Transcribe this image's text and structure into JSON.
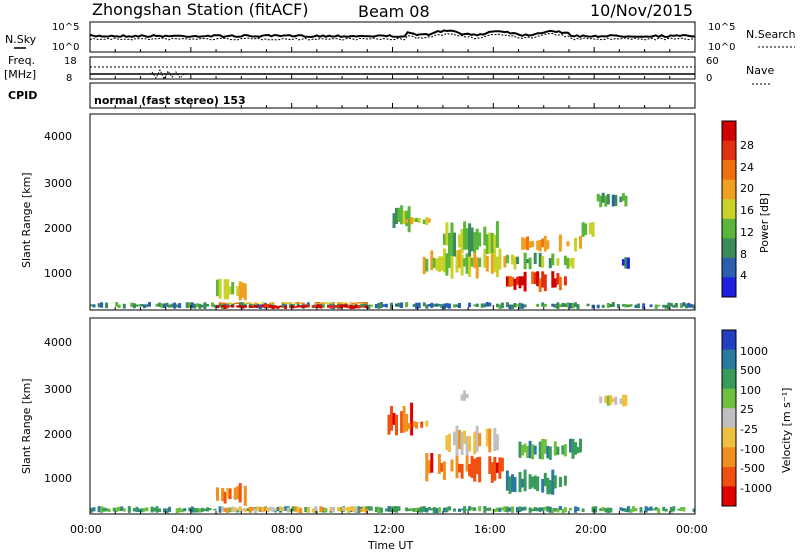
{
  "header": {
    "station": "Zhongshan Station (fitACF)",
    "beam": "Beam 08",
    "date": "10/Nov/2015"
  },
  "top_panels": {
    "nsky_label": "N.Sky",
    "nsky_ticks": [
      "10^5",
      "10^0"
    ],
    "nsearch_label": "N.Search",
    "nsearch_ticks": [
      "10^5",
      "10^0"
    ],
    "freq_label": "Freq.",
    "freq_unit": "[MHz]",
    "freq_ticks": [
      "18",
      "8"
    ],
    "nave_label": "Nave",
    "nave_ticks": [
      "60",
      "0"
    ],
    "cpid_label": "CPID",
    "cpid_text": "normal (fast stereo) 153"
  },
  "x_axis": {
    "label": "Time UT",
    "ticks": [
      "00:00",
      "04:00",
      "08:00",
      "12:00",
      "16:00",
      "20:00",
      "00:00"
    ]
  },
  "colors": {
    "power_scale": [
      "#1f1fe0",
      "#2a5fb0",
      "#3a8a5a",
      "#5ab53a",
      "#c8d22a",
      "#f0a020",
      "#f07010",
      "#e03010",
      "#d00000"
    ],
    "velocity_scale": [
      "#e00000",
      "#f05010",
      "#f09020",
      "#f0c040",
      "#c0c0c0",
      "#70c040",
      "#3a9a5a",
      "#2a7aa0",
      "#2040c0"
    ]
  },
  "chart_data": [
    {
      "type": "heatmap",
      "panel": "power",
      "xlabel": "Time UT",
      "ylabel": "Slant Range [km]",
      "ylim": [
        200,
        4600
      ],
      "xlim": [
        0,
        24
      ],
      "yticks": [
        "4000",
        "3000",
        "2000",
        "1000"
      ],
      "colorbar_label": "Power [dB]",
      "colorbar_ticks": [
        "28",
        "24",
        "20",
        "16",
        "12",
        "8",
        "4"
      ],
      "regions": [
        {
          "t0": 0.0,
          "t1": 24.0,
          "r0": 220,
          "r1": 380,
          "level": 2
        },
        {
          "t0": 5.0,
          "t1": 11.0,
          "r0": 220,
          "r1": 330,
          "level": 8
        },
        {
          "t0": 5.0,
          "t1": 11.0,
          "r0": 330,
          "r1": 380,
          "level": 5
        },
        {
          "t0": 5.0,
          "t1": 6.2,
          "r0": 380,
          "r1": 900,
          "level": 4
        },
        {
          "t0": 12.0,
          "t1": 12.8,
          "r0": 1900,
          "r1": 2600,
          "level": 3
        },
        {
          "t0": 12.5,
          "t1": 13.5,
          "r0": 2100,
          "r1": 2300,
          "level": 4
        },
        {
          "t0": 13.2,
          "t1": 16.5,
          "r0": 900,
          "r1": 1600,
          "level": 4
        },
        {
          "t0": 14.0,
          "t1": 16.2,
          "r0": 1400,
          "r1": 2200,
          "level": 3
        },
        {
          "t0": 16.5,
          "t1": 19.0,
          "r0": 600,
          "r1": 1100,
          "level": 7
        },
        {
          "t0": 17.0,
          "t1": 19.5,
          "r0": 1500,
          "r1": 1900,
          "level": 5
        },
        {
          "t0": 16.5,
          "t1": 19.2,
          "r0": 1100,
          "r1": 1500,
          "level": 3
        },
        {
          "t0": 20.0,
          "t1": 21.3,
          "r0": 2500,
          "r1": 2900,
          "level": 2
        },
        {
          "t0": 21.0,
          "t1": 21.5,
          "r0": 1100,
          "r1": 1400,
          "level": 1
        },
        {
          "t0": 19.5,
          "t1": 20.0,
          "r0": 1700,
          "r1": 2200,
          "level": 4
        }
      ]
    },
    {
      "type": "heatmap",
      "panel": "velocity",
      "xlabel": "Time UT",
      "ylabel": "Slant Range [km]",
      "ylim": [
        200,
        4600
      ],
      "xlim": [
        0,
        24
      ],
      "yticks": [
        "4000",
        "3000",
        "2000",
        "1000"
      ],
      "colorbar_label": "Velocity [m s⁻¹]",
      "colorbar_ticks": [
        "1000",
        "500",
        "100",
        "25",
        "-25",
        "-100",
        "-500",
        "-1000"
      ],
      "regions": [
        {
          "t0": 0.0,
          "t1": 24.0,
          "r0": 220,
          "r1": 380,
          "level": 6
        },
        {
          "t0": 5.0,
          "t1": 11.0,
          "r0": 220,
          "r1": 380,
          "level": 3
        },
        {
          "t0": 5.0,
          "t1": 6.2,
          "r0": 380,
          "r1": 900,
          "level": 2
        },
        {
          "t0": 11.8,
          "t1": 12.8,
          "r0": 1900,
          "r1": 2700,
          "level": 1
        },
        {
          "t0": 12.5,
          "t1": 13.5,
          "r0": 2100,
          "r1": 2300,
          "level": 2
        },
        {
          "t0": 13.2,
          "t1": 16.5,
          "r0": 900,
          "r1": 1600,
          "level": 1
        },
        {
          "t0": 14.0,
          "t1": 16.2,
          "r0": 1500,
          "r1": 2200,
          "level": 3
        },
        {
          "t0": 16.5,
          "t1": 19.0,
          "r0": 600,
          "r1": 1200,
          "level": 6
        },
        {
          "t0": 17.0,
          "t1": 19.5,
          "r0": 1400,
          "r1": 1900,
          "level": 6
        },
        {
          "t0": 20.2,
          "t1": 21.3,
          "r0": 2600,
          "r1": 2900,
          "level": 4
        },
        {
          "t0": 14.5,
          "t1": 15.0,
          "r0": 2700,
          "r1": 3000,
          "level": 4
        }
      ]
    }
  ]
}
